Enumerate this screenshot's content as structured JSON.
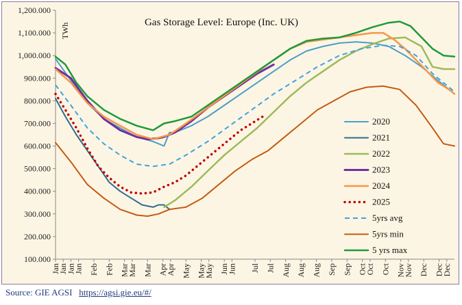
{
  "chart_data": {
    "type": "line",
    "title": "Gas Storage Level: Europe (Inc. UK)",
    "unit_label": "TWh",
    "ylim": [
      100000,
      1200000
    ],
    "y_ticks": [
      "100.000",
      "200.000",
      "300.000",
      "400.000",
      "500.000",
      "600.000",
      "700.000",
      "800.000",
      "900.000",
      "1,000.000",
      "1,100.000",
      "1,200.000"
    ],
    "y_tick_values": [
      100000,
      200000,
      300000,
      400000,
      500000,
      600000,
      700000,
      800000,
      900000,
      1000000,
      1100000,
      1200000
    ],
    "x_ticks": [
      "Jan",
      "Jan",
      "Jan",
      "Jan",
      "Feb",
      "Feb",
      "Mar",
      "Mar",
      "Mar",
      "Apr",
      "Apr",
      "May",
      "May",
      "May",
      "Jun",
      "Jun",
      "Jul",
      "Jul",
      "Aug",
      "Aug",
      "Aug",
      "Sep",
      "Sep",
      "Oct",
      "Oct",
      "Oct",
      "Nov",
      "Nov",
      "Dec",
      "Dec",
      "Dec"
    ],
    "x_tick_days": [
      1,
      8,
      15,
      22,
      36,
      50,
      64,
      71,
      85,
      99,
      106,
      120,
      134,
      141,
      155,
      162,
      183,
      197,
      211,
      225,
      239,
      253,
      267,
      281,
      288,
      302,
      316,
      323,
      337,
      351,
      358
    ],
    "grid": false,
    "legend_position": "right",
    "series": [
      {
        "name": "2020",
        "color": "#4a9ec8",
        "dash": "solid",
        "width": 2,
        "x": [
          1,
          15,
          30,
          45,
          60,
          75,
          90,
          95,
          100,
          105,
          110,
          125,
          140,
          155,
          170,
          185,
          200,
          215,
          230,
          245,
          260,
          275,
          290,
          305,
          320,
          335,
          350,
          365
        ],
        "y": [
          985000,
          890000,
          790000,
          720000,
          680000,
          640000,
          620000,
          610000,
          600000,
          660000,
          660000,
          690000,
          730000,
          780000,
          830000,
          880000,
          930000,
          980000,
          1020000,
          1040000,
          1055000,
          1060000,
          1055000,
          1040000,
          1000000,
          950000,
          890000,
          830000
        ]
      },
      {
        "name": "2021",
        "color": "#2c6d8e",
        "dash": "solid",
        "width": 2,
        "x": [
          1,
          10,
          20,
          30,
          40,
          50,
          60,
          70,
          80,
          90,
          95,
          100,
          105
        ],
        "y": [
          810000,
          730000,
          650000,
          580000,
          510000,
          440000,
          400000,
          370000,
          340000,
          330000,
          340000,
          340000,
          320000
        ]
      },
      {
        "name": "2022",
        "color": "#9bbb59",
        "dash": "solid",
        "width": 2.5,
        "x": [
          100,
          110,
          125,
          140,
          155,
          170,
          185,
          200,
          215,
          230,
          245,
          260,
          275,
          290,
          305,
          320,
          335,
          345,
          355,
          365
        ],
        "y": [
          330000,
          360000,
          420000,
          490000,
          560000,
          620000,
          680000,
          750000,
          820000,
          880000,
          930000,
          980000,
          1020000,
          1050000,
          1075000,
          1080000,
          1040000,
          950000,
          940000,
          940000
        ],
        "x_lbl": ""
      },
      {
        "name": "2023",
        "color": "#7030a0",
        "dash": "solid",
        "width": 3,
        "x": [
          1,
          15,
          30,
          45,
          60,
          75,
          85,
          95,
          100,
          110,
          125,
          140,
          155,
          170,
          185,
          200
        ],
        "y": [
          945000,
          900000,
          800000,
          720000,
          670000,
          640000,
          630000,
          635000,
          640000,
          660000,
          710000,
          770000,
          820000,
          870000,
          920000,
          960000
        ]
      },
      {
        "name": "2024",
        "color": "#f79646",
        "dash": "solid",
        "width": 2.5,
        "x": [
          1,
          15,
          30,
          45,
          60,
          75,
          90,
          105,
          120,
          140,
          160,
          180,
          200,
          215,
          230,
          245,
          260,
          275,
          290,
          300,
          310,
          320,
          330,
          340,
          350,
          360,
          365
        ],
        "y": [
          940000,
          880000,
          790000,
          730000,
          690000,
          650000,
          630000,
          650000,
          700000,
          770000,
          840000,
          910000,
          980000,
          1030000,
          1060000,
          1070000,
          1080000,
          1090000,
          1100000,
          1100000,
          1070000,
          1030000,
          980000,
          930000,
          880000,
          850000,
          830000
        ]
      },
      {
        "name": "2025",
        "color": "#c00000",
        "dash": "dot",
        "width": 3.5,
        "x": [
          1,
          10,
          20,
          30,
          40,
          50,
          60,
          70,
          80,
          90,
          100,
          110,
          120,
          130,
          140,
          150,
          160,
          170,
          180,
          190
        ],
        "y": [
          830000,
          760000,
          680000,
          590000,
          510000,
          460000,
          420000,
          395000,
          390000,
          395000,
          420000,
          440000,
          470000,
          510000,
          550000,
          590000,
          630000,
          670000,
          700000,
          730000
        ]
      },
      {
        "name": "5yrs avg",
        "color": "#3aa3e0",
        "dash": "dash",
        "width": 2,
        "x": [
          1,
          15,
          30,
          45,
          60,
          75,
          90,
          105,
          120,
          140,
          160,
          180,
          200,
          220,
          240,
          260,
          280,
          300,
          315,
          330,
          345,
          365
        ],
        "y": [
          870000,
          780000,
          680000,
          610000,
          560000,
          520000,
          510000,
          520000,
          560000,
          620000,
          690000,
          760000,
          830000,
          890000,
          950000,
          1000000,
          1030000,
          1045000,
          1040000,
          1000000,
          920000,
          840000
        ]
      },
      {
        "name": "5yrs min",
        "color": "#c55a11",
        "dash": "solid",
        "width": 2,
        "x": [
          1,
          15,
          30,
          45,
          60,
          75,
          85,
          95,
          105,
          120,
          135,
          150,
          165,
          180,
          195,
          210,
          225,
          240,
          255,
          270,
          285,
          300,
          315,
          330,
          345,
          355,
          365
        ],
        "y": [
          615000,
          530000,
          430000,
          370000,
          320000,
          295000,
          290000,
          300000,
          320000,
          330000,
          370000,
          430000,
          490000,
          540000,
          580000,
          640000,
          700000,
          760000,
          800000,
          840000,
          860000,
          865000,
          850000,
          780000,
          680000,
          610000,
          600000
        ]
      },
      {
        "name": "5 yrs max",
        "color": "#1e9a3a",
        "dash": "solid",
        "width": 2.5,
        "x": [
          1,
          10,
          20,
          30,
          45,
          60,
          75,
          90,
          100,
          110,
          125,
          140,
          155,
          170,
          185,
          200,
          215,
          230,
          245,
          260,
          275,
          290,
          305,
          315,
          325,
          335,
          345,
          355,
          365
        ],
        "y": [
          995000,
          960000,
          880000,
          820000,
          760000,
          720000,
          690000,
          670000,
          700000,
          710000,
          730000,
          780000,
          830000,
          880000,
          930000,
          980000,
          1030000,
          1065000,
          1075000,
          1080000,
          1100000,
          1125000,
          1145000,
          1150000,
          1130000,
          1080000,
          1030000,
          1000000,
          995000
        ]
      }
    ]
  },
  "source": {
    "label": "Source: GIE AGSI",
    "link_text": "https://agsi.gie.eu/#/"
  }
}
